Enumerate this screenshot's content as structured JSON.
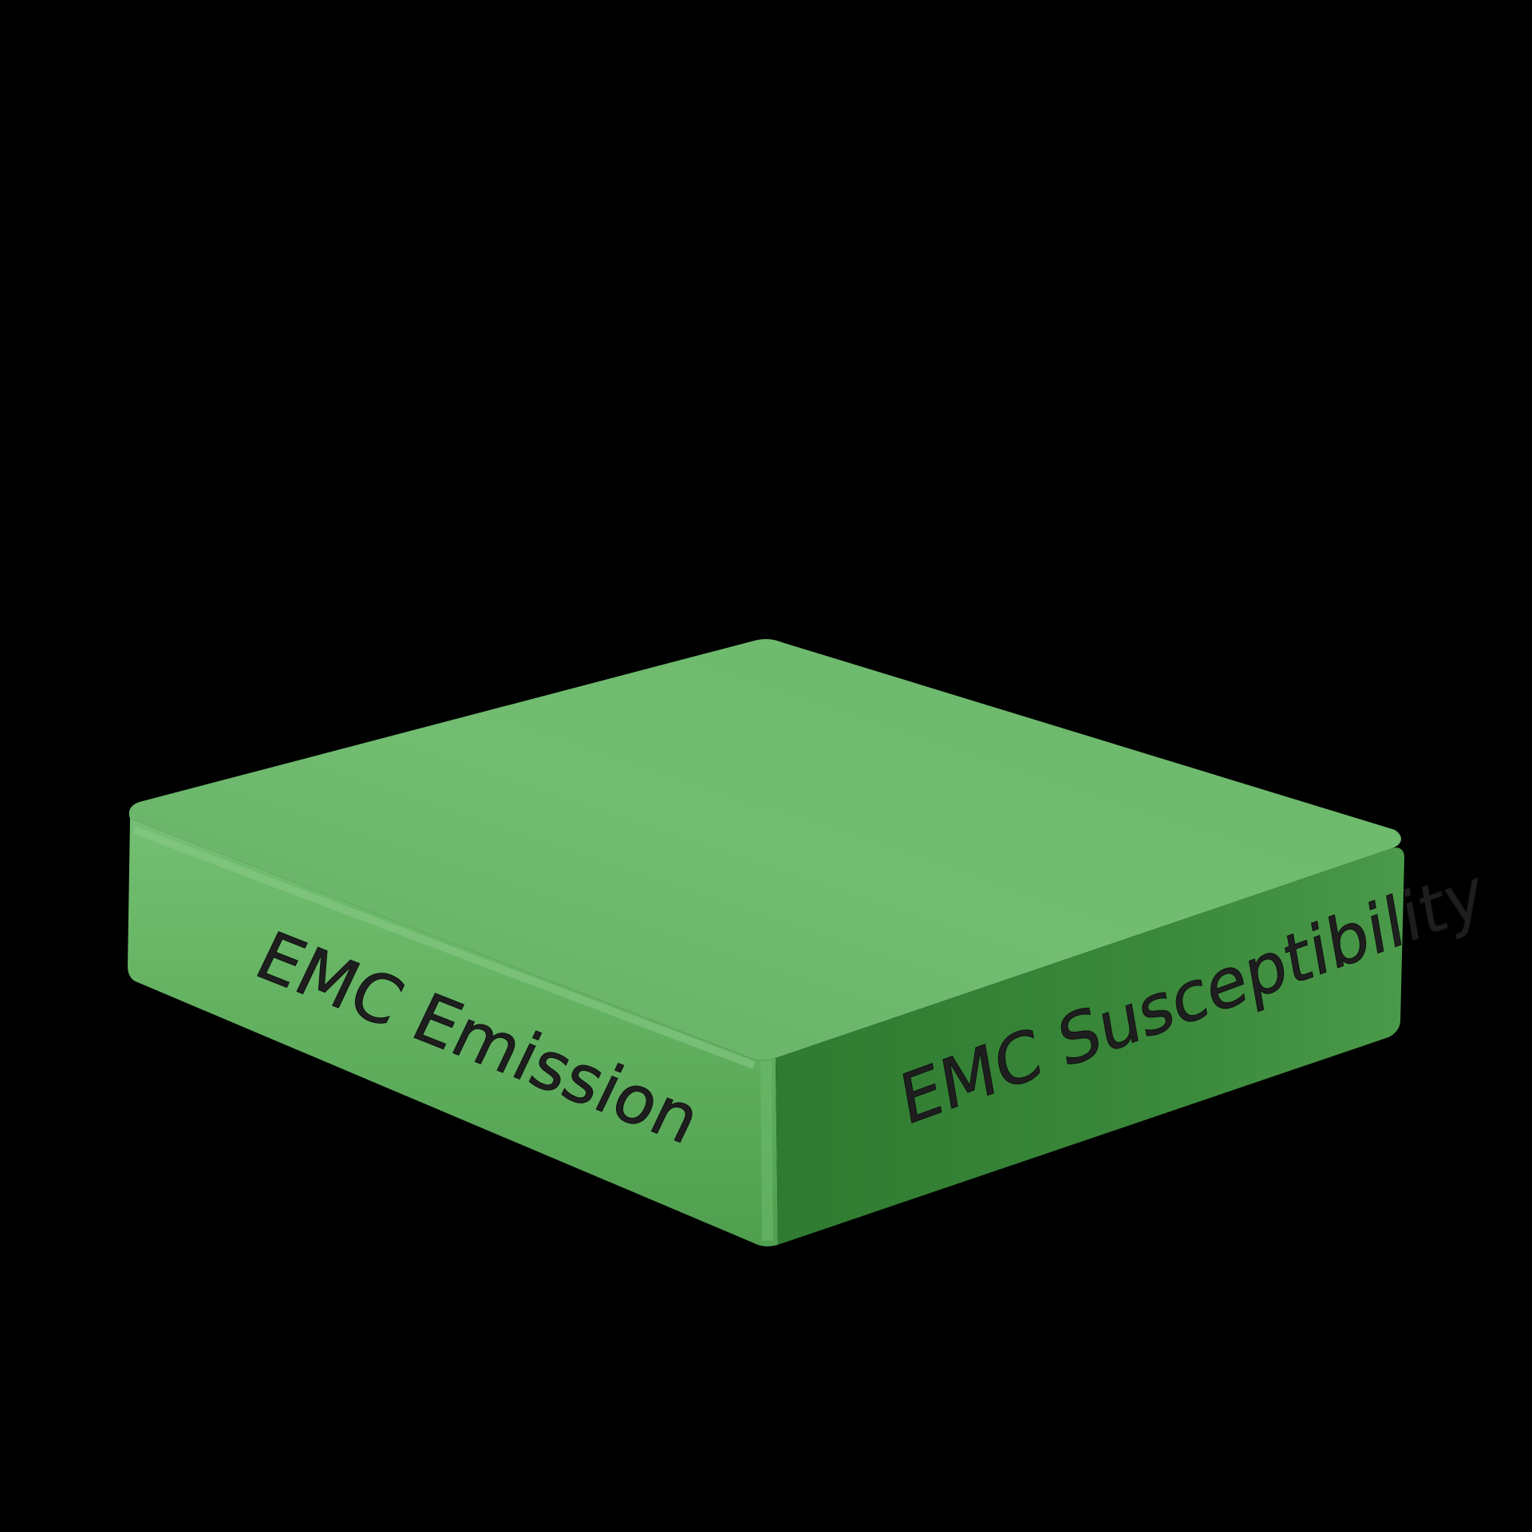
{
  "box": {
    "front_label": "EMC Emission",
    "side_label": "EMC Susceptibility"
  },
  "colors": {
    "background": "#000000",
    "top_face": "#6fb96e",
    "front_face": "#5fae5f",
    "side_face": "#3b8a3b",
    "label_text": "#1e1e1e",
    "edge_artifact": "#c238c6"
  }
}
